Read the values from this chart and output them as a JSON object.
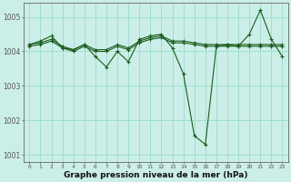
{
  "xlabel": "Graphe pression niveau de la mer (hPa)",
  "background_color": "#cceee8",
  "grid_color": "#99ddcc",
  "line_color": "#1a5c1a",
  "ylim": [
    1000.8,
    1005.4
  ],
  "xlim": [
    -0.5,
    23.5
  ],
  "yticks": [
    1001,
    1002,
    1003,
    1004,
    1005
  ],
  "xtick_labels": [
    "0",
    "1",
    "2",
    "3",
    "4",
    "5",
    "6",
    "7",
    "8",
    "9",
    "10",
    "11",
    "12",
    "13",
    "14",
    "15",
    "16",
    "17",
    "18",
    "19",
    "20",
    "21",
    "22",
    "23"
  ],
  "series_flat1": [
    1004.2,
    1004.25,
    1004.35,
    1004.15,
    1004.05,
    1004.2,
    1004.05,
    1004.05,
    1004.2,
    1004.1,
    1004.3,
    1004.4,
    1004.45,
    1004.3,
    1004.3,
    1004.25,
    1004.2,
    1004.2,
    1004.2,
    1004.2,
    1004.2,
    1004.2,
    1004.2,
    1004.2
  ],
  "series_flat2": [
    1004.15,
    1004.2,
    1004.3,
    1004.1,
    1004.0,
    1004.15,
    1004.0,
    1004.0,
    1004.15,
    1004.05,
    1004.25,
    1004.35,
    1004.4,
    1004.25,
    1004.25,
    1004.2,
    1004.15,
    1004.15,
    1004.15,
    1004.15,
    1004.15,
    1004.15,
    1004.15,
    1004.15
  ],
  "series_main": [
    1004.2,
    1004.3,
    1004.45,
    1004.1,
    1004.05,
    1004.2,
    1003.85,
    1003.55,
    1004.0,
    1003.7,
    1004.35,
    1004.45,
    1004.5,
    1004.1,
    1003.35,
    1001.55,
    1001.3,
    1004.15,
    1004.2,
    1004.15,
    1004.5,
    1005.2,
    1004.35,
    1003.85
  ]
}
